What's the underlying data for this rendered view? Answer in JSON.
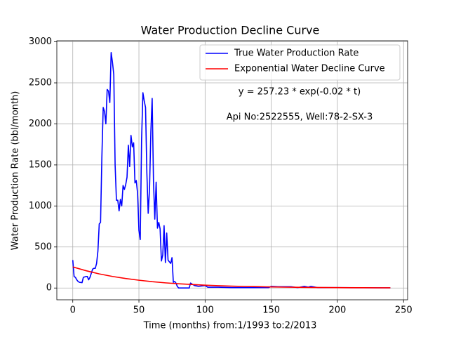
{
  "chart_data": {
    "type": "line",
    "title": "Water Production Decline Curve",
    "xlabel": "Time (months) from:1/1993 to:2/2013",
    "ylabel": "Water Production Rate (bbl/month)",
    "annotations": [
      "y = 257.23 * exp(-0.02 * t)",
      "Api No:2522555, Well:78-2-SX-3"
    ],
    "xlim": [
      -12.05,
      253.05
    ],
    "ylim": [
      -143.5,
      3013.5
    ],
    "xticks": [
      0,
      50,
      100,
      150,
      200,
      250
    ],
    "yticks": [
      0,
      500,
      1000,
      1500,
      2000,
      2500,
      3000
    ],
    "grid": true,
    "legend": "upper right",
    "series": [
      {
        "name": "True Water Production Rate",
        "color": "#0000ff",
        "x": [
          0,
          1,
          2,
          3,
          4,
          5,
          7,
          8,
          10,
          11,
          12,
          13,
          15,
          16,
          17,
          18,
          19,
          20,
          21,
          22,
          23,
          24,
          25,
          26,
          27,
          28,
          29,
          30,
          31,
          32,
          33,
          34,
          35,
          36,
          37,
          38,
          39,
          40,
          41,
          42,
          43,
          44,
          45,
          46,
          47,
          48,
          49,
          50,
          51,
          52,
          53,
          54,
          55,
          56,
          57,
          58,
          59,
          60,
          61,
          62,
          63,
          64,
          65,
          66,
          67,
          68,
          69,
          70,
          71,
          72,
          73,
          74,
          75,
          76,
          77,
          78,
          79,
          80,
          85,
          88,
          89,
          90,
          92,
          95,
          100,
          102,
          110,
          120,
          130,
          140,
          148,
          150,
          155,
          165,
          170,
          175,
          178,
          180,
          185,
          200,
          220,
          240
        ],
        "values": [
          340,
          140,
          130,
          100,
          80,
          70,
          65,
          130,
          140,
          140,
          100,
          130,
          230,
          240,
          240,
          300,
          450,
          780,
          800,
          1600,
          2200,
          2150,
          2000,
          2420,
          2400,
          2260,
          2870,
          2750,
          2600,
          1500,
          1070,
          1070,
          940,
          1080,
          1000,
          1250,
          1200,
          1260,
          1350,
          1740,
          1480,
          1860,
          1720,
          1770,
          1280,
          1310,
          1150,
          700,
          590,
          1800,
          2380,
          2280,
          2200,
          1400,
          910,
          1200,
          1900,
          2310,
          1300,
          840,
          1290,
          730,
          800,
          720,
          330,
          400,
          760,
          310,
          670,
          340,
          320,
          300,
          370,
          70,
          80,
          60,
          20,
          0,
          0,
          0,
          60,
          50,
          30,
          20,
          30,
          10,
          10,
          5,
          5,
          5,
          5,
          20,
          15,
          15,
          5,
          20,
          10,
          20,
          5,
          5,
          3,
          2
        ]
      },
      {
        "name": "Exponential Water Decline Curve",
        "color": "#ff0000",
        "x": [
          0,
          10,
          20,
          30,
          40,
          50,
          60,
          70,
          80,
          90,
          100,
          110,
          120,
          130,
          140,
          150,
          160,
          170,
          180,
          190,
          200,
          210,
          220,
          230,
          240
        ],
        "values": [
          257,
          211,
          172,
          141,
          116,
          95,
          77,
          63,
          52,
          43,
          35,
          28,
          23,
          19,
          16,
          13,
          10.5,
          8.6,
          7.0,
          5.8,
          4.7,
          3.8,
          3.1,
          2.6,
          2.1
        ]
      }
    ]
  }
}
